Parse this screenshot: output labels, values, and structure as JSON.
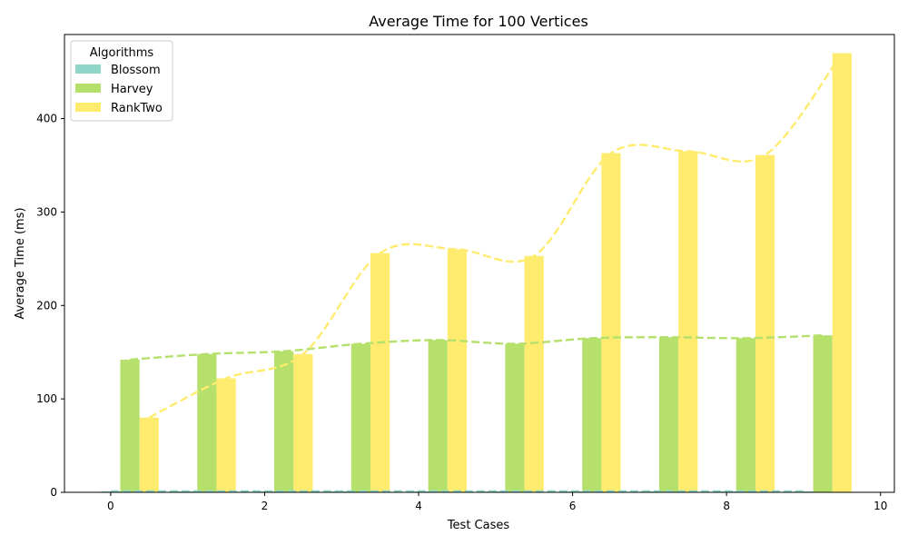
{
  "chart_data": {
    "type": "bar",
    "title": "Average Time for 100 Vertices",
    "xlabel": "Test Cases",
    "ylabel": "Average Time (ms)",
    "x": [
      0,
      1,
      2,
      3,
      4,
      5,
      6,
      7,
      8,
      9
    ],
    "xlim": [
      -0.6,
      10.18
    ],
    "ylim": [
      0,
      490
    ],
    "xticks": [
      0,
      2,
      4,
      6,
      8,
      10
    ],
    "yticks": [
      0,
      100,
      200,
      300,
      400
    ],
    "grid": false,
    "legend": {
      "title": "Algorithms",
      "placement": "top-left"
    },
    "bar_offsets": [
      0,
      0.25,
      0.5
    ],
    "bar_width": 0.25,
    "series": [
      {
        "name": "Blossom",
        "color": "#8fd6c9",
        "values": [
          1,
          1,
          1,
          1,
          1,
          1,
          1,
          1,
          1,
          1
        ]
      },
      {
        "name": "Harvey",
        "color": "#b5e06c",
        "values": [
          142,
          148,
          151,
          159,
          163,
          159,
          165,
          166,
          165,
          168
        ]
      },
      {
        "name": "RankTwo",
        "color": "#ffec6e",
        "values": [
          80,
          122,
          148,
          256,
          260,
          253,
          363,
          365,
          361,
          470
        ]
      }
    ],
    "trend_lines": [
      {
        "name": "Blossom",
        "color": "#8fd6c9",
        "values": [
          1,
          1,
          1,
          1,
          1,
          1,
          1,
          1,
          1,
          1
        ]
      },
      {
        "name": "Harvey",
        "color": "#b5e06c",
        "values": [
          142,
          148,
          151,
          159,
          163,
          159,
          165,
          166,
          165,
          168
        ]
      },
      {
        "name": "RankTwo",
        "color": "#ffec6e",
        "values": [
          80,
          122,
          148,
          256,
          260,
          253,
          363,
          365,
          361,
          470
        ]
      }
    ]
  }
}
